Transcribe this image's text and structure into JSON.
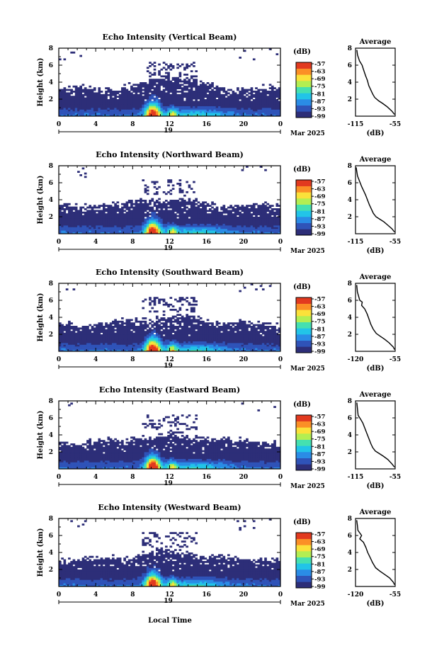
{
  "chart_data": {
    "type": "heatmap",
    "colorbar": {
      "unit": "(dB)",
      "ticks": [
        "-57",
        "-63",
        "-69",
        "-75",
        "-81",
        "-87",
        "-93",
        "-99"
      ],
      "colors": [
        "#2d2e78",
        "#2f53b8",
        "#2a8ce6",
        "#22c4e8",
        "#45e0b0",
        "#b3ee52",
        "#fbe13a",
        "#fb8f26",
        "#e23a1f"
      ]
    },
    "x_ticks": [
      "0",
      "4",
      "8",
      "12",
      "16",
      "20",
      "0"
    ],
    "x_day_label": "19",
    "x_month_label": "Mar 2025",
    "xlabel": "Local Time",
    "ylabel": "Height (km)",
    "y_ticks": [
      "2",
      "4",
      "6",
      "8"
    ],
    "xlim": [
      0,
      24
    ],
    "ylim": [
      0,
      8
    ],
    "profile_title": "Average",
    "profile_ylim": [
      0,
      8
    ],
    "profile_xlabel": "(dB)",
    "panels": [
      {
        "title": "Echo Intensity (Vertical Beam)",
        "profile_xticks": [
          "-115",
          "-55"
        ],
        "profile_xlim": [
          -115,
          -55
        ],
        "profile": [
          [
            -113,
            7.8
          ],
          [
            -112,
            7.2
          ],
          [
            -109,
            6.5
          ],
          [
            -105,
            6.0
          ],
          [
            -103,
            5.5
          ],
          [
            -100,
            4.8
          ],
          [
            -97,
            4.2
          ],
          [
            -95,
            3.6
          ],
          [
            -92,
            3.1
          ],
          [
            -89,
            2.6
          ],
          [
            -86,
            2.2
          ],
          [
            -80,
            1.8
          ],
          [
            -74,
            1.5
          ],
          [
            -67,
            1.1
          ],
          [
            -60,
            0.6
          ],
          [
            -56,
            0.2
          ]
        ]
      },
      {
        "title": "Echo Intensity (Northward Beam)",
        "profile_xticks": [
          "-115",
          "-55"
        ],
        "profile_xlim": [
          -115,
          -55
        ],
        "profile": [
          [
            -114,
            7.8
          ],
          [
            -112,
            6.8
          ],
          [
            -109,
            6.2
          ],
          [
            -106,
            5.6
          ],
          [
            -103,
            5.1
          ],
          [
            -100,
            4.6
          ],
          [
            -97,
            4.0
          ],
          [
            -94,
            3.4
          ],
          [
            -91,
            2.9
          ],
          [
            -88,
            2.4
          ],
          [
            -84,
            2.0
          ],
          [
            -78,
            1.7
          ],
          [
            -72,
            1.4
          ],
          [
            -66,
            1.0
          ],
          [
            -60,
            0.6
          ],
          [
            -56,
            0.2
          ]
        ]
      },
      {
        "title": "Echo Intensity (Southward Beam)",
        "profile_xticks": [
          "-120",
          "-55"
        ],
        "profile_xlim": [
          -120,
          -55
        ],
        "profile": [
          [
            -118,
            7.8
          ],
          [
            -117,
            7.0
          ],
          [
            -115,
            6.5
          ],
          [
            -113,
            6.0
          ],
          [
            -109,
            5.8
          ],
          [
            -110,
            5.4
          ],
          [
            -105,
            5.0
          ],
          [
            -101,
            4.4
          ],
          [
            -98,
            3.8
          ],
          [
            -95,
            3.2
          ],
          [
            -91,
            2.6
          ],
          [
            -86,
            2.1
          ],
          [
            -80,
            1.8
          ],
          [
            -72,
            1.4
          ],
          [
            -65,
            1.0
          ],
          [
            -58,
            0.5
          ],
          [
            -56,
            0.2
          ]
        ]
      },
      {
        "title": "Echo Intensity (Eastward Beam)",
        "profile_xticks": [
          "-115",
          "-55"
        ],
        "profile_xlim": [
          -115,
          -55
        ],
        "profile": [
          [
            -113,
            7.8
          ],
          [
            -112,
            7.0
          ],
          [
            -111,
            6.3
          ],
          [
            -107,
            5.8
          ],
          [
            -104,
            5.4
          ],
          [
            -101,
            4.8
          ],
          [
            -98,
            4.2
          ],
          [
            -95,
            3.6
          ],
          [
            -92,
            3.0
          ],
          [
            -89,
            2.5
          ],
          [
            -85,
            2.1
          ],
          [
            -79,
            1.8
          ],
          [
            -73,
            1.5
          ],
          [
            -66,
            1.1
          ],
          [
            -60,
            0.6
          ],
          [
            -56,
            0.2
          ]
        ]
      },
      {
        "title": "Echo Intensity (Westward Beam)",
        "profile_xticks": [
          "-120",
          "-55"
        ],
        "profile_xlim": [
          -120,
          -55
        ],
        "profile": [
          [
            -118,
            7.8
          ],
          [
            -117,
            7.2
          ],
          [
            -116,
            6.6
          ],
          [
            -113,
            6.3
          ],
          [
            -110,
            6.0
          ],
          [
            -113,
            5.6
          ],
          [
            -107,
            5.2
          ],
          [
            -103,
            4.6
          ],
          [
            -100,
            4.0
          ],
          [
            -96,
            3.4
          ],
          [
            -92,
            2.8
          ],
          [
            -87,
            2.2
          ],
          [
            -80,
            1.8
          ],
          [
            -72,
            1.4
          ],
          [
            -64,
            1.0
          ],
          [
            -58,
            0.5
          ],
          [
            -56,
            0.2
          ]
        ]
      }
    ]
  }
}
